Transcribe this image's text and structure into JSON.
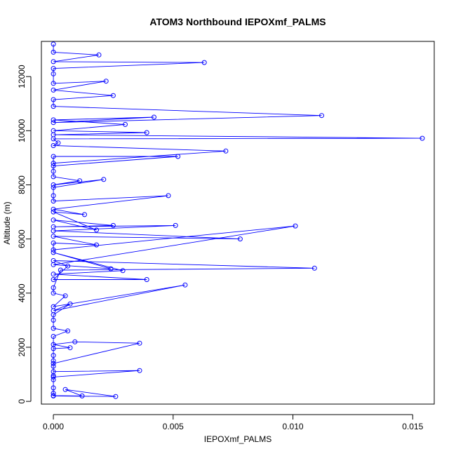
{
  "chart_data": {
    "type": "line",
    "title": "ATOM3 Northbound IEPOXmf_PALMS",
    "xlabel": "IEPOXmf_PALMS",
    "ylabel": "Altitude (m)",
    "xlim": [
      -0.0005,
      0.0159
    ],
    "ylim": [
      -100,
      13300
    ],
    "xticks": [
      0.0,
      0.005,
      0.01,
      0.015
    ],
    "xtick_labels": [
      "0.000",
      "0.005",
      "0.010",
      "0.015"
    ],
    "yticks": [
      0,
      2000,
      4000,
      6000,
      8000,
      10000,
      12000
    ],
    "ytick_labels": [
      "0",
      "2000",
      "4000",
      "6000",
      "8000",
      "10000",
      "12000"
    ],
    "grid": false,
    "series": [
      {
        "color": "#0000ff",
        "marker": "open-circle",
        "points": [
          [
            0.0,
            200
          ],
          [
            0.0026,
            180
          ],
          [
            0.0005,
            440
          ],
          [
            0.0012,
            200
          ],
          [
            0.0,
            210
          ],
          [
            0.0,
            300
          ],
          [
            0.0,
            500
          ],
          [
            0.0,
            800
          ],
          [
            0.0,
            950
          ],
          [
            0.0,
            1100
          ],
          [
            0.0036,
            1140
          ],
          [
            0.0,
            900
          ],
          [
            0.0,
            1300
          ],
          [
            0.0,
            1500
          ],
          [
            0.0,
            1700
          ],
          [
            0.0,
            1950
          ],
          [
            0.0007,
            1980
          ],
          [
            0.0,
            2100
          ],
          [
            0.0009,
            2200
          ],
          [
            0.0036,
            2150
          ],
          [
            0.0,
            1400
          ],
          [
            0.0,
            2400
          ],
          [
            0.0006,
            2600
          ],
          [
            0.0,
            2700
          ],
          [
            0.0,
            3000
          ],
          [
            0.0,
            3200
          ],
          [
            0.0007,
            3600
          ],
          [
            0.0,
            3350
          ],
          [
            0.0055,
            4300
          ],
          [
            0.0,
            3500
          ],
          [
            0.0005,
            3900
          ],
          [
            0.0,
            4000
          ],
          [
            0.0,
            4200
          ],
          [
            0.0003,
            4850
          ],
          [
            0.0109,
            4920
          ],
          [
            0.0,
            5200
          ],
          [
            0.0006,
            5000
          ],
          [
            0.0,
            4500
          ],
          [
            0.0039,
            4500
          ],
          [
            0.0,
            4700
          ],
          [
            0.0029,
            4830
          ],
          [
            0.0,
            5500
          ],
          [
            0.0024,
            4900
          ],
          [
            0.0,
            5050
          ],
          [
            0.0101,
            6480
          ],
          [
            0.0,
            5600
          ],
          [
            0.0,
            5850
          ],
          [
            0.0018,
            5780
          ],
          [
            0.0,
            6100
          ],
          [
            0.0078,
            6000
          ],
          [
            0.0,
            6300
          ],
          [
            0.0051,
            6500
          ],
          [
            0.0,
            6450
          ],
          [
            0.0025,
            6500
          ],
          [
            0.0,
            6700
          ],
          [
            0.0018,
            6330
          ],
          [
            0.0,
            7000
          ],
          [
            0.0013,
            6900
          ],
          [
            0.0,
            7100
          ],
          [
            0.0048,
            7600
          ],
          [
            0.0,
            7400
          ],
          [
            0.0,
            7600
          ],
          [
            0.0,
            7900
          ],
          [
            0.0021,
            8200
          ],
          [
            0.0,
            8000
          ],
          [
            0.0011,
            8150
          ],
          [
            0.0,
            8300
          ],
          [
            0.0,
            8500
          ],
          [
            0.0,
            8700
          ],
          [
            0.0052,
            9050
          ],
          [
            0.0,
            9050
          ],
          [
            0.0,
            8800
          ],
          [
            0.0072,
            9250
          ],
          [
            0.0,
            9450
          ],
          [
            0.0002,
            9550
          ],
          [
            0.0,
            9700
          ],
          [
            0.0154,
            9720
          ],
          [
            0.0,
            9850
          ],
          [
            0.0039,
            9930
          ],
          [
            0.0,
            10000
          ],
          [
            0.003,
            10230
          ],
          [
            0.0,
            10400
          ],
          [
            0.0042,
            10500
          ],
          [
            0.0,
            10300
          ],
          [
            0.0112,
            10560
          ],
          [
            0.0,
            10900
          ],
          [
            0.0,
            11150
          ],
          [
            0.0025,
            11300
          ],
          [
            0.0,
            11500
          ],
          [
            0.0022,
            11830
          ],
          [
            0.0,
            11750
          ],
          [
            0.0,
            12100
          ],
          [
            0.0,
            12300
          ],
          [
            0.0063,
            12520
          ],
          [
            0.0,
            12550
          ],
          [
            0.0019,
            12800
          ],
          [
            0.0,
            12900
          ],
          [
            0.0,
            13200
          ]
        ]
      }
    ]
  }
}
